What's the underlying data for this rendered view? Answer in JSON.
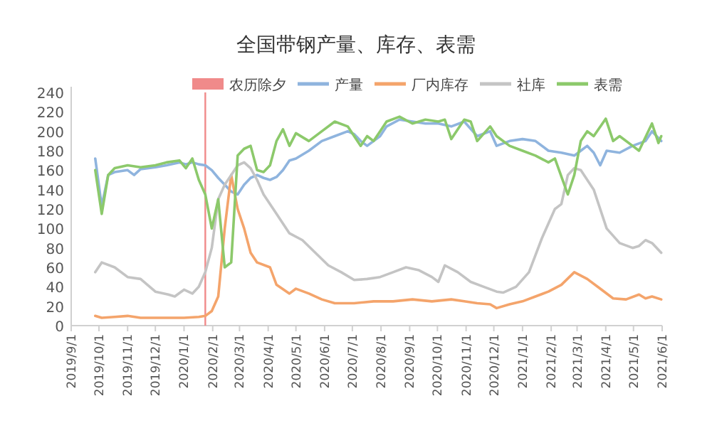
{
  "chart_data": {
    "type": "line",
    "title": "全国带钢产量、库存、表需",
    "xlim": [
      "2019-09-01",
      "2021-06-01"
    ],
    "ylim": [
      0,
      240
    ],
    "yticks": [
      0,
      20,
      40,
      60,
      80,
      100,
      120,
      140,
      160,
      180,
      200,
      220,
      240
    ],
    "xticks": [
      {
        "value": "2019-09-01",
        "label": "2019/9/1"
      },
      {
        "value": "2019-10-01",
        "label": "2019/10/1"
      },
      {
        "value": "2019-11-01",
        "label": "2019/11/1"
      },
      {
        "value": "2019-12-01",
        "label": "2019/12/1"
      },
      {
        "value": "2020-01-01",
        "label": "2020/1/1"
      },
      {
        "value": "2020-02-01",
        "label": "2020/2/1"
      },
      {
        "value": "2020-03-01",
        "label": "2020/3/1"
      },
      {
        "value": "2020-04-01",
        "label": "2020/4/1"
      },
      {
        "value": "2020-05-01",
        "label": "2020/5/1"
      },
      {
        "value": "2020-06-01",
        "label": "2020/6/1"
      },
      {
        "value": "2020-07-01",
        "label": "2020/7/1"
      },
      {
        "value": "2020-08-01",
        "label": "2020/8/1"
      },
      {
        "value": "2020-09-01",
        "label": "2020/9/1"
      },
      {
        "value": "2020-10-01",
        "label": "2020/10/1"
      },
      {
        "value": "2020-11-01",
        "label": "2020/11/1"
      },
      {
        "value": "2020-12-01",
        "label": "2020/12/1"
      },
      {
        "value": "2021-01-01",
        "label": "2021/1/1"
      },
      {
        "value": "2021-02-01",
        "label": "2021/2/1"
      },
      {
        "value": "2021-03-01",
        "label": "2021/3/1"
      },
      {
        "value": "2021-04-01",
        "label": "2021/4/1"
      },
      {
        "value": "2021-05-01",
        "label": "2021/5/1"
      },
      {
        "value": "2021-06-01",
        "label": "2021/6/1"
      }
    ],
    "ref_lines": [
      {
        "axis": "x",
        "value": "2020-01-24",
        "label": "农历除夕",
        "color": "#f08a8a"
      }
    ],
    "legend": "top",
    "grid": false,
    "series": [
      {
        "name": "产量",
        "color": "#8fb4de",
        "x": [
          "2019-09-27",
          "2019-10-04",
          "2019-10-11",
          "2019-10-18",
          "2019-11-01",
          "2019-11-08",
          "2019-11-15",
          "2019-12-01",
          "2019-12-13",
          "2019-12-27",
          "2020-01-03",
          "2020-01-10",
          "2020-01-17",
          "2020-01-24",
          "2020-01-31",
          "2020-02-07",
          "2020-02-14",
          "2020-02-21",
          "2020-02-28",
          "2020-03-06",
          "2020-03-13",
          "2020-03-20",
          "2020-03-27",
          "2020-04-03",
          "2020-04-10",
          "2020-04-17",
          "2020-04-24",
          "2020-05-01",
          "2020-05-15",
          "2020-05-29",
          "2020-06-12",
          "2020-06-26",
          "2020-07-03",
          "2020-07-10",
          "2020-07-17",
          "2020-07-24",
          "2020-07-31",
          "2020-08-07",
          "2020-08-21",
          "2020-09-04",
          "2020-09-18",
          "2020-10-02",
          "2020-10-16",
          "2020-10-30",
          "2020-11-13",
          "2020-11-27",
          "2020-12-04",
          "2020-12-18",
          "2021-01-01",
          "2021-01-15",
          "2021-01-29",
          "2021-02-12",
          "2021-02-26",
          "2021-03-05",
          "2021-03-12",
          "2021-03-19",
          "2021-03-26",
          "2021-04-02",
          "2021-04-16",
          "2021-04-30",
          "2021-05-14",
          "2021-05-21",
          "2021-05-31"
        ],
        "values": [
          172,
          123,
          155,
          158,
          160,
          155,
          161,
          163,
          165,
          168,
          166,
          168,
          166,
          165,
          160,
          152,
          145,
          138,
          135,
          145,
          152,
          155,
          152,
          150,
          153,
          160,
          170,
          172,
          180,
          190,
          195,
          200,
          197,
          190,
          185,
          190,
          195,
          205,
          212,
          210,
          208,
          208,
          205,
          210,
          195,
          200,
          185,
          190,
          192,
          190,
          180,
          178,
          175,
          180,
          185,
          178,
          165,
          180,
          178,
          185,
          190,
          200,
          190
        ]
      },
      {
        "name": "厂内库存",
        "color": "#f4a46b",
        "x": [
          "2019-09-27",
          "2019-10-04",
          "2019-10-18",
          "2019-11-01",
          "2019-11-15",
          "2019-12-01",
          "2019-12-15",
          "2020-01-01",
          "2020-01-17",
          "2020-01-24",
          "2020-01-31",
          "2020-02-07",
          "2020-02-14",
          "2020-02-21",
          "2020-02-28",
          "2020-03-06",
          "2020-03-13",
          "2020-03-20",
          "2020-04-03",
          "2020-04-10",
          "2020-04-24",
          "2020-05-01",
          "2020-05-15",
          "2020-05-29",
          "2020-06-12",
          "2020-07-03",
          "2020-07-24",
          "2020-08-14",
          "2020-09-04",
          "2020-09-25",
          "2020-10-16",
          "2020-10-30",
          "2020-11-13",
          "2020-11-27",
          "2020-12-04",
          "2020-12-18",
          "2021-01-01",
          "2021-01-15",
          "2021-01-29",
          "2021-02-12",
          "2021-02-26",
          "2021-03-12",
          "2021-03-26",
          "2021-04-09",
          "2021-04-23",
          "2021-05-07",
          "2021-05-14",
          "2021-05-21",
          "2021-05-31"
        ],
        "values": [
          10,
          8,
          9,
          10,
          8,
          8,
          8,
          8,
          9,
          10,
          15,
          30,
          100,
          155,
          120,
          100,
          75,
          65,
          60,
          42,
          33,
          38,
          33,
          27,
          23,
          23,
          25,
          25,
          27,
          25,
          27,
          25,
          23,
          22,
          18,
          22,
          25,
          30,
          35,
          42,
          55,
          48,
          38,
          28,
          27,
          32,
          28,
          30,
          27
        ]
      },
      {
        "name": "社库",
        "color": "#c4c4c4",
        "x": [
          "2019-09-27",
          "2019-10-04",
          "2019-10-18",
          "2019-11-01",
          "2019-11-15",
          "2019-12-01",
          "2019-12-15",
          "2019-12-22",
          "2020-01-01",
          "2020-01-10",
          "2020-01-17",
          "2020-01-24",
          "2020-01-31",
          "2020-02-07",
          "2020-02-14",
          "2020-02-21",
          "2020-02-28",
          "2020-03-06",
          "2020-03-13",
          "2020-03-20",
          "2020-03-27",
          "2020-04-10",
          "2020-04-24",
          "2020-05-08",
          "2020-05-22",
          "2020-06-05",
          "2020-06-19",
          "2020-07-03",
          "2020-07-17",
          "2020-07-31",
          "2020-08-14",
          "2020-08-28",
          "2020-09-11",
          "2020-09-25",
          "2020-10-02",
          "2020-10-09",
          "2020-10-23",
          "2020-11-06",
          "2020-11-20",
          "2020-12-04",
          "2020-12-11",
          "2020-12-25",
          "2021-01-08",
          "2021-01-22",
          "2021-02-05",
          "2021-02-12",
          "2021-02-19",
          "2021-02-26",
          "2021-03-05",
          "2021-03-19",
          "2021-04-02",
          "2021-04-16",
          "2021-04-30",
          "2021-05-07",
          "2021-05-14",
          "2021-05-21",
          "2021-05-31"
        ],
        "values": [
          55,
          65,
          60,
          50,
          48,
          35,
          32,
          30,
          37,
          33,
          40,
          55,
          80,
          130,
          145,
          155,
          165,
          168,
          162,
          150,
          135,
          115,
          95,
          88,
          75,
          62,
          55,
          47,
          48,
          50,
          55,
          60,
          57,
          50,
          45,
          62,
          55,
          45,
          40,
          35,
          34,
          40,
          55,
          90,
          120,
          125,
          155,
          162,
          160,
          140,
          100,
          85,
          80,
          82,
          88,
          85,
          75
        ]
      },
      {
        "name": "表需",
        "color": "#8cc96b",
        "x": [
          "2019-09-27",
          "2019-10-04",
          "2019-10-11",
          "2019-10-18",
          "2019-11-01",
          "2019-11-15",
          "2019-12-01",
          "2019-12-13",
          "2019-12-27",
          "2020-01-03",
          "2020-01-10",
          "2020-01-17",
          "2020-01-24",
          "2020-01-31",
          "2020-02-07",
          "2020-02-14",
          "2020-02-21",
          "2020-02-28",
          "2020-03-06",
          "2020-03-13",
          "2020-03-20",
          "2020-03-27",
          "2020-04-03",
          "2020-04-10",
          "2020-04-17",
          "2020-04-24",
          "2020-05-01",
          "2020-05-15",
          "2020-05-29",
          "2020-06-12",
          "2020-06-26",
          "2020-07-03",
          "2020-07-10",
          "2020-07-17",
          "2020-07-24",
          "2020-07-31",
          "2020-08-07",
          "2020-08-21",
          "2020-09-04",
          "2020-09-18",
          "2020-10-02",
          "2020-10-09",
          "2020-10-16",
          "2020-10-30",
          "2020-11-06",
          "2020-11-13",
          "2020-11-27",
          "2020-12-04",
          "2020-12-18",
          "2021-01-01",
          "2021-01-15",
          "2021-01-29",
          "2021-02-05",
          "2021-02-19",
          "2021-02-26",
          "2021-03-05",
          "2021-03-12",
          "2021-03-19",
          "2021-04-01",
          "2021-04-09",
          "2021-04-16",
          "2021-04-30",
          "2021-05-07",
          "2021-05-21",
          "2021-05-28",
          "2021-05-31"
        ],
        "values": [
          160,
          115,
          155,
          162,
          165,
          163,
          165,
          168,
          170,
          162,
          172,
          150,
          135,
          100,
          130,
          60,
          65,
          175,
          182,
          185,
          160,
          158,
          165,
          190,
          202,
          185,
          198,
          190,
          200,
          210,
          205,
          195,
          185,
          195,
          190,
          200,
          210,
          215,
          208,
          212,
          210,
          212,
          192,
          212,
          210,
          190,
          205,
          195,
          185,
          180,
          175,
          168,
          172,
          135,
          155,
          190,
          200,
          195,
          213,
          190,
          195,
          185,
          180,
          208,
          188,
          195
        ]
      }
    ]
  }
}
